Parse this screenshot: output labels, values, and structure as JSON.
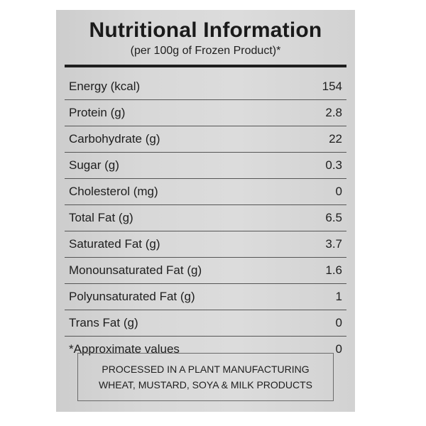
{
  "label": {
    "title": "Nutritional Information",
    "subtitle": "(per 100g of Frozen Product)*",
    "rows": [
      {
        "name": "Energy (kcal)",
        "value": "154"
      },
      {
        "name": "Protein (g)",
        "value": "2.8"
      },
      {
        "name": "Carbohydrate (g)",
        "value": "22"
      },
      {
        "name": "Sugar (g)",
        "value": "0.3"
      },
      {
        "name": "Cholesterol (mg)",
        "value": "0"
      },
      {
        "name": "Total Fat (g)",
        "value": "6.5"
      },
      {
        "name": "Saturated Fat (g)",
        "value": "3.7"
      },
      {
        "name": "Monounsaturated Fat (g)",
        "value": "1.6"
      },
      {
        "name": "Polyunsaturated Fat (g)",
        "value": "1"
      },
      {
        "name": "Trans Fat (g)",
        "value": "0"
      },
      {
        "name": "*Approximate values",
        "value": "0"
      }
    ],
    "notice": {
      "line1": "PROCESSED IN A PLANT MANUFACTURING",
      "line2": "WHEAT, MUSTARD, SOYA & MILK PRODUCTS"
    }
  }
}
